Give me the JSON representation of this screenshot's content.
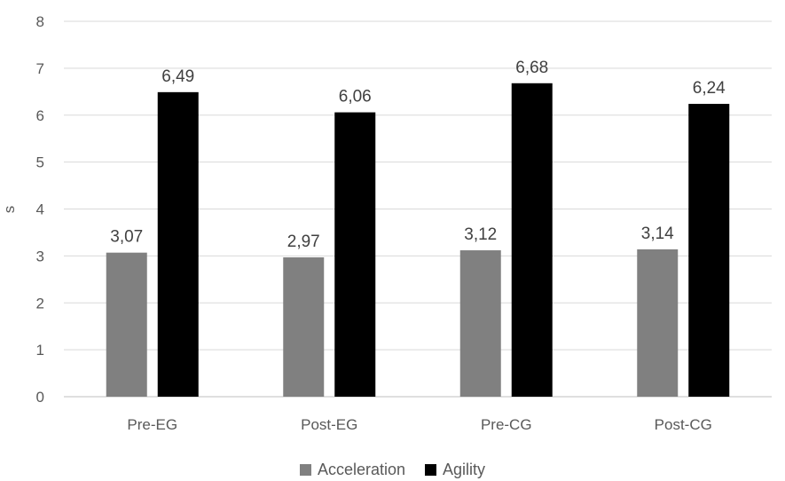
{
  "chart_data": {
    "type": "bar",
    "categories": [
      "Pre-EG",
      "Post-EG",
      "Pre-CG",
      "Post-CG"
    ],
    "series": [
      {
        "name": "Acceleration",
        "values": [
          3.07,
          2.97,
          3.12,
          3.14
        ],
        "labels": [
          "3,07",
          "2,97",
          "3,12",
          "3,14"
        ],
        "color": "#808080"
      },
      {
        "name": "Agility",
        "values": [
          6.49,
          6.06,
          6.68,
          6.24
        ],
        "labels": [
          "6,49",
          "6,06",
          "6,68",
          "6,24"
        ],
        "color": "#000000"
      }
    ],
    "ylabel": "s",
    "ylim": [
      0,
      8
    ],
    "yticks": [
      "0",
      "1",
      "2",
      "3",
      "4",
      "5",
      "6",
      "7",
      "8"
    ],
    "grid": true,
    "legend_position": "bottom"
  }
}
